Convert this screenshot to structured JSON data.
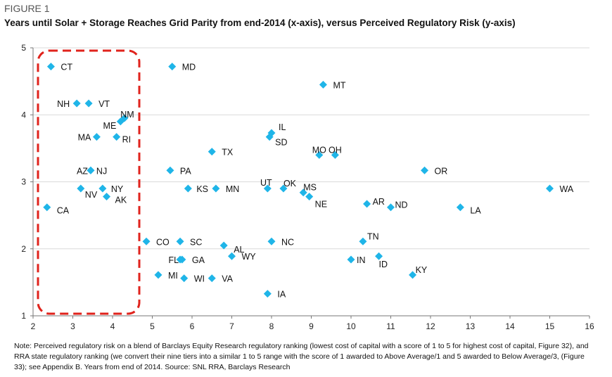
{
  "figure_label": "FIGURE 1",
  "title": "Years until Solar + Storage Reaches Grid Parity from end-2014 (x-axis), versus Perceived Regulatory Risk (y-axis)",
  "note": "Note: Perceived regulatory risk on a blend of Barclays Equity Research regulatory ranking (lowest cost of capital with a score of 1 to 5 for highest cost of capital, Figure 32), and RRA state regulatory ranking (we convert their nine tiers into a similar 1 to 5 range with the score of 1 awarded to Above Average/1 and 5 awarded to Below Average/3, (Figure 33); see Appendix B. Years from end of 2014. Source: SNL RRA, Barclays Research",
  "chart_data": {
    "type": "scatter",
    "title": "Years until Solar + Storage Reaches Grid Parity from end-2014 (x-axis), versus Perceived Regulatory Risk (y-axis)",
    "xlabel": "",
    "ylabel": "",
    "xlim": [
      2,
      16
    ],
    "ylim": [
      1,
      5
    ],
    "x_ticks": [
      "2",
      "3",
      "4",
      "5",
      "6",
      "7",
      "8",
      "9",
      "10",
      "11",
      "12",
      "13",
      "14",
      "15",
      "16"
    ],
    "y_ticks": [
      "1",
      "2",
      "3",
      "4",
      "5"
    ],
    "grid": "horizontal only",
    "marker_color": "#1fb5e8",
    "highlight_box_color": "#e0231c",
    "points": [
      {
        "label": "CT",
        "x": 2.45,
        "y": 4.72
      },
      {
        "label": "MD",
        "x": 5.5,
        "y": 4.72
      },
      {
        "label": "MT",
        "x": 9.3,
        "y": 4.45
      },
      {
        "label": "NH",
        "x": 3.1,
        "y": 4.17
      },
      {
        "label": "VT",
        "x": 3.4,
        "y": 4.17
      },
      {
        "label": "NM",
        "x": 4.3,
        "y": 3.95
      },
      {
        "label": "ME",
        "x": 4.2,
        "y": 3.9
      },
      {
        "label": "MA",
        "x": 3.6,
        "y": 3.67
      },
      {
        "label": "RI",
        "x": 4.1,
        "y": 3.67
      },
      {
        "label": "IL",
        "x": 8.0,
        "y": 3.73
      },
      {
        "label": "SD",
        "x": 7.95,
        "y": 3.67
      },
      {
        "label": "TX",
        "x": 6.5,
        "y": 3.45
      },
      {
        "label": "MO",
        "x": 9.2,
        "y": 3.4
      },
      {
        "label": "OH",
        "x": 9.6,
        "y": 3.4
      },
      {
        "label": "AZ",
        "x": 3.45,
        "y": 3.17
      },
      {
        "label": "NJ",
        "x": 3.45,
        "y": 3.17
      },
      {
        "label": "PA",
        "x": 5.45,
        "y": 3.17
      },
      {
        "label": "OR",
        "x": 11.85,
        "y": 3.17
      },
      {
        "label": "UT",
        "x": 7.9,
        "y": 2.9
      },
      {
        "label": "OK",
        "x": 8.3,
        "y": 2.9
      },
      {
        "label": "KS",
        "x": 5.9,
        "y": 2.9
      },
      {
        "label": "MN",
        "x": 6.6,
        "y": 2.9
      },
      {
        "label": "NV",
        "x": 3.2,
        "y": 2.9
      },
      {
        "label": "NY",
        "x": 3.75,
        "y": 2.9
      },
      {
        "label": "AK",
        "x": 3.85,
        "y": 2.78
      },
      {
        "label": "MS",
        "x": 8.8,
        "y": 2.84
      },
      {
        "label": "NE",
        "x": 8.95,
        "y": 2.78
      },
      {
        "label": "WA",
        "x": 15.0,
        "y": 2.9
      },
      {
        "label": "AR",
        "x": 10.4,
        "y": 2.67
      },
      {
        "label": "ND",
        "x": 11.0,
        "y": 2.62
      },
      {
        "label": "LA",
        "x": 12.75,
        "y": 2.62
      },
      {
        "label": "CA",
        "x": 2.35,
        "y": 2.62
      },
      {
        "label": "TN",
        "x": 10.3,
        "y": 2.11
      },
      {
        "label": "CO",
        "x": 4.85,
        "y": 2.11
      },
      {
        "label": "SC",
        "x": 5.7,
        "y": 2.11
      },
      {
        "label": "NC",
        "x": 8.0,
        "y": 2.11
      },
      {
        "label": "AL",
        "x": 6.8,
        "y": 2.05
      },
      {
        "label": "WY",
        "x": 7.0,
        "y": 1.89
      },
      {
        "label": "ID",
        "x": 10.7,
        "y": 1.89
      },
      {
        "label": "FL",
        "x": 5.7,
        "y": 1.84
      },
      {
        "label": "GA",
        "x": 5.75,
        "y": 1.84
      },
      {
        "label": "IN",
        "x": 10.0,
        "y": 1.84
      },
      {
        "label": "KY",
        "x": 11.55,
        "y": 1.61
      },
      {
        "label": "MI",
        "x": 5.15,
        "y": 1.61
      },
      {
        "label": "WI",
        "x": 5.8,
        "y": 1.56
      },
      {
        "label": "VA",
        "x": 6.5,
        "y": 1.56
      },
      {
        "label": "IA",
        "x": 7.9,
        "y": 1.33
      }
    ]
  }
}
